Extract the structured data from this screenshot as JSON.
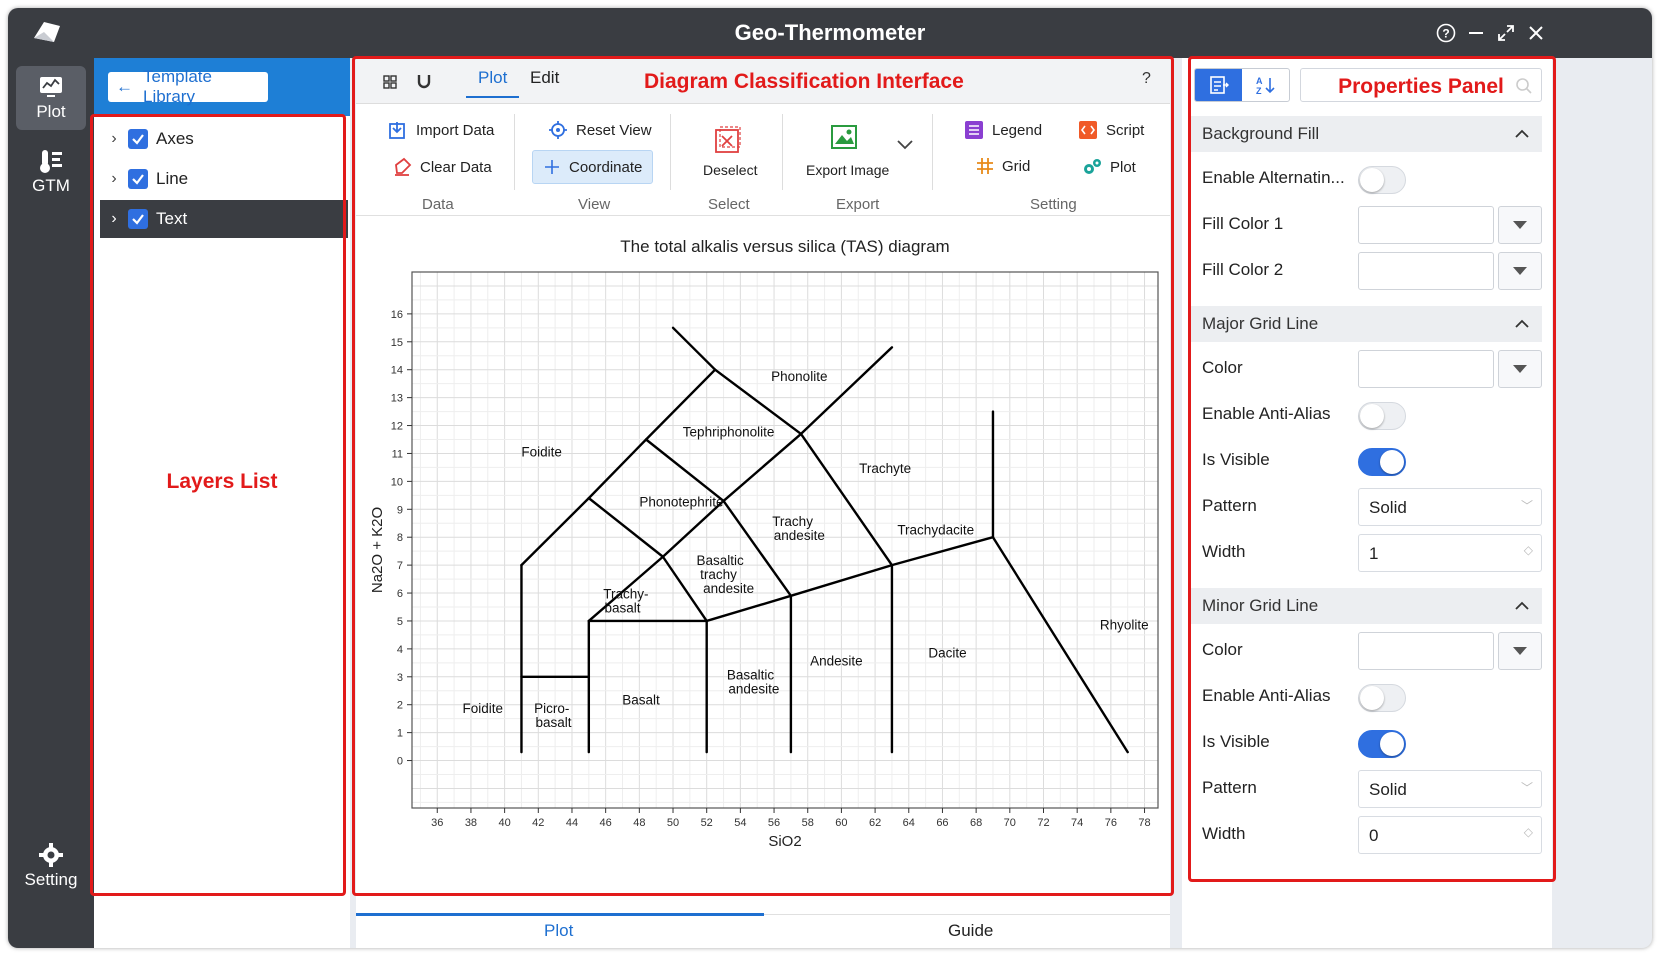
{
  "app": {
    "title": "Geo-Thermometer"
  },
  "leftbar": {
    "items": [
      {
        "label": "Plot"
      },
      {
        "label": "GTM"
      }
    ],
    "setting_label": "Setting"
  },
  "layers": {
    "template_button": "Template Library",
    "items": [
      {
        "label": "Axes",
        "checked": true
      },
      {
        "label": "Line",
        "checked": true
      },
      {
        "label": "Text",
        "checked": true,
        "selected": true
      }
    ],
    "annotation": "Layers List"
  },
  "center": {
    "tabs": [
      {
        "label": "Plot",
        "active": true
      },
      {
        "label": "Edit"
      }
    ],
    "help": "?",
    "annotation": "Diagram Classification Interface",
    "ribbon": {
      "import_data": "Import Data",
      "clear_data": "Clear Data",
      "reset_view": "Reset View",
      "coordinate": "Coordinate",
      "deselect": "Deselect",
      "export_image": "Export Image",
      "legend": "Legend",
      "grid": "Grid",
      "script": "Script",
      "plot": "Plot",
      "groups": {
        "data": "Data",
        "view": "View",
        "select": "Select",
        "export": "Export",
        "setting": "Setting"
      }
    },
    "bottom_tabs": [
      {
        "label": "Plot",
        "active": true
      },
      {
        "label": "Guide"
      }
    ]
  },
  "chart_data": {
    "type": "diagram",
    "title": "The total alkalis versus silica (TAS) diagram",
    "xlabel": "SiO2",
    "ylabel": "Na2O + K2O",
    "xlim": [
      34.5,
      78.8
    ],
    "ylim": [
      -1.7,
      17.5
    ],
    "xticks": [
      36,
      38,
      40,
      42,
      44,
      46,
      48,
      50,
      52,
      54,
      56,
      58,
      60,
      62,
      64,
      66,
      68,
      70,
      72,
      74,
      76,
      78
    ],
    "yticks": [
      0,
      1,
      2,
      3,
      4,
      5,
      6,
      7,
      8,
      9,
      10,
      11,
      12,
      13,
      14,
      15,
      16
    ],
    "grid": true,
    "lines": [
      [
        [
          41,
          0.3
        ],
        [
          41,
          7
        ]
      ],
      [
        [
          41,
          3
        ],
        [
          45,
          3
        ]
      ],
      [
        [
          45,
          0.3
        ],
        [
          45,
          5
        ]
      ],
      [
        [
          45,
          5
        ],
        [
          52,
          5
        ]
      ],
      [
        [
          52,
          0.3
        ],
        [
          52,
          5
        ]
      ],
      [
        [
          57,
          0.3
        ],
        [
          57,
          5.9
        ]
      ],
      [
        [
          63,
          0.3
        ],
        [
          63,
          7
        ]
      ],
      [
        [
          41,
          7
        ],
        [
          45,
          9.4
        ]
      ],
      [
        [
          45,
          9.4
        ],
        [
          49.4,
          7.3
        ]
      ],
      [
        [
          45,
          5
        ],
        [
          49.4,
          7.3
        ]
      ],
      [
        [
          49.4,
          7.3
        ],
        [
          52,
          5
        ]
      ],
      [
        [
          52,
          5
        ],
        [
          57,
          5.9
        ]
      ],
      [
        [
          57,
          5.9
        ],
        [
          63,
          7
        ]
      ],
      [
        [
          63,
          7
        ],
        [
          69,
          8
        ]
      ],
      [
        [
          69,
          8
        ],
        [
          69,
          12.5
        ]
      ],
      [
        [
          69,
          8
        ],
        [
          77,
          0.3
        ]
      ],
      [
        [
          45,
          9.4
        ],
        [
          48.4,
          11.5
        ]
      ],
      [
        [
          48.4,
          11.5
        ],
        [
          52.5,
          14
        ]
      ],
      [
        [
          52.5,
          14
        ],
        [
          50,
          15.5
        ]
      ],
      [
        [
          52.5,
          14
        ],
        [
          57.6,
          11.7
        ]
      ],
      [
        [
          57.6,
          11.7
        ],
        [
          63,
          14.8
        ]
      ],
      [
        [
          48.4,
          11.5
        ],
        [
          53,
          9.3
        ]
      ],
      [
        [
          49.4,
          7.3
        ],
        [
          53,
          9.3
        ]
      ],
      [
        [
          53,
          9.3
        ],
        [
          57.6,
          11.7
        ]
      ],
      [
        [
          53,
          9.3
        ],
        [
          57,
          5.9
        ]
      ],
      [
        [
          57.6,
          11.7
        ],
        [
          63,
          7
        ]
      ]
    ],
    "labels": [
      {
        "text": "Phonolite",
        "x": 57.5,
        "y": 13.6
      },
      {
        "text": "Tephriphonolite",
        "x": 53.3,
        "y": 11.6
      },
      {
        "text": "Foidite",
        "x": 42.2,
        "y": 10.9
      },
      {
        "text": "Trachyte",
        "x": 62.6,
        "y": 10.3
      },
      {
        "text": "Phonotephrite",
        "x": 50.5,
        "y": 9.1
      },
      {
        "text": "Trachy",
        "x": 57.1,
        "y": 8.4
      },
      {
        "text": "andesite",
        "x": 57.5,
        "y": 7.9
      },
      {
        "text": "Trachydacite",
        "x": 65.6,
        "y": 8.1
      },
      {
        "text": "Basaltic",
        "x": 52.8,
        "y": 7.0
      },
      {
        "text": "trachy",
        "x": 52.7,
        "y": 6.5
      },
      {
        "text": "andesite",
        "x": 53.3,
        "y": 6.0
      },
      {
        "text": "Trachy-",
        "x": 47.2,
        "y": 5.8
      },
      {
        "text": "basalt",
        "x": 47.0,
        "y": 5.3
      },
      {
        "text": "Rhyolite",
        "x": 76.8,
        "y": 4.7
      },
      {
        "text": "Dacite",
        "x": 66.3,
        "y": 3.7
      },
      {
        "text": "Andesite",
        "x": 59.7,
        "y": 3.4
      },
      {
        "text": "Basaltic",
        "x": 54.6,
        "y": 2.9
      },
      {
        "text": "andesite",
        "x": 54.8,
        "y": 2.4
      },
      {
        "text": "Basalt",
        "x": 48.1,
        "y": 2.0
      },
      {
        "text": "Foidite",
        "x": 38.7,
        "y": 1.7
      },
      {
        "text": "Picro-",
        "x": 42.8,
        "y": 1.7
      },
      {
        "text": "basalt",
        "x": 42.9,
        "y": 1.2
      }
    ]
  },
  "props": {
    "annotation": "Properties Panel",
    "sections": {
      "background_fill": "Background Fill",
      "major_grid": "Major Grid Line",
      "minor_grid": "Minor Grid Line"
    },
    "rows": {
      "enable_alternating": "Enable Alternatin...",
      "fill_color_1": "Fill Color 1",
      "fill_color_2": "Fill Color 2",
      "color": "Color",
      "enable_anti_alias": "Enable Anti-Alias",
      "is_visible": "Is Visible",
      "pattern": "Pattern",
      "width": "Width"
    },
    "major": {
      "pattern": "Solid",
      "width": "1"
    },
    "minor": {
      "pattern": "Solid",
      "width": "0"
    }
  },
  "colors": {
    "accent": "#1e6fd0",
    "annotation_red": "#e21a1a",
    "dark": "#3a3d42"
  }
}
